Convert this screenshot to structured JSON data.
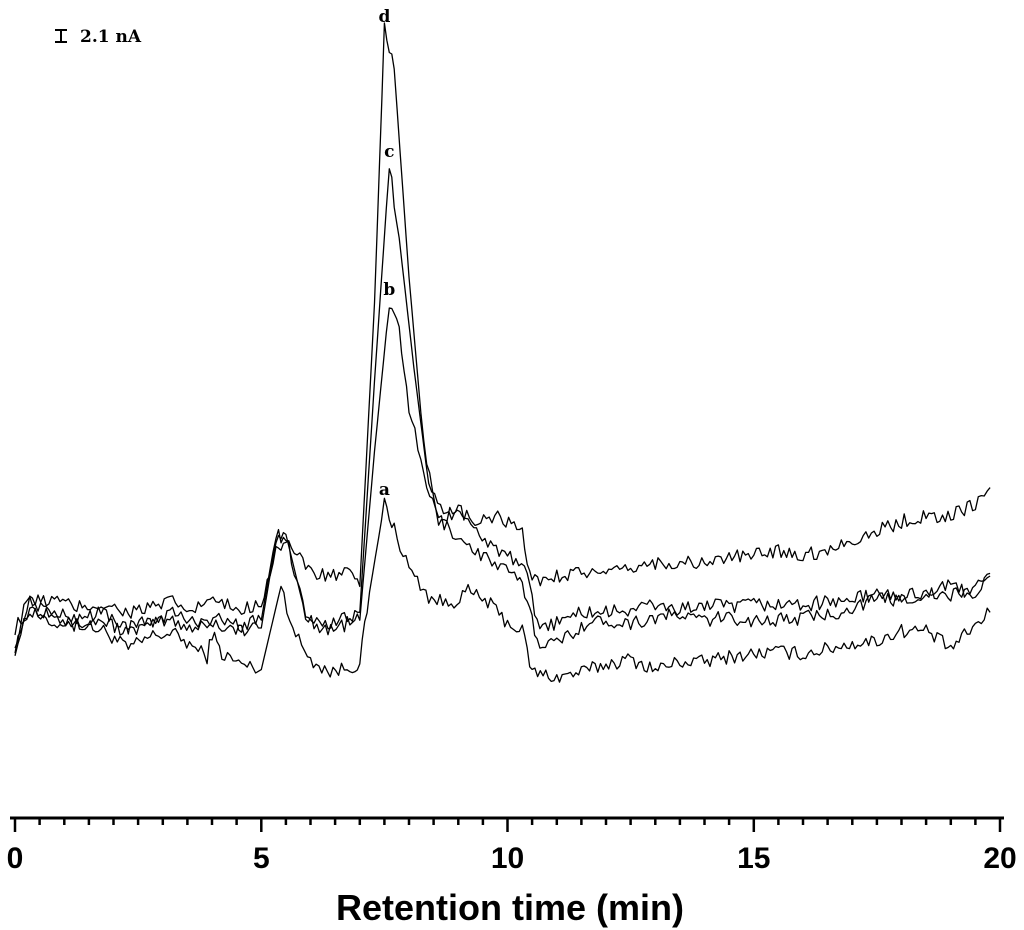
{
  "chart_data": {
    "type": "line",
    "title": "",
    "xlabel": "Retention time (min)",
    "ylabel": "",
    "xlim": [
      0,
      20
    ],
    "x_ticks": [
      0,
      5,
      10,
      15,
      20
    ],
    "x_minor_step": 0.5,
    "grid": false,
    "y_axis_shown": false,
    "scale_bar": {
      "label": "2.1 nA",
      "value_nA": 2.1
    },
    "series": [
      {
        "name": "a",
        "points": [
          [
            0,
            1.2
          ],
          [
            0.3,
            2.7
          ],
          [
            0.8,
            2.4
          ],
          [
            1.2,
            2.2
          ],
          [
            1.8,
            1.9
          ],
          [
            2.3,
            1.2
          ],
          [
            2.8,
            1.7
          ],
          [
            3.2,
            1.8
          ],
          [
            3.6,
            1.3
          ],
          [
            3.9,
            0.9
          ],
          [
            4.0,
            1.8
          ],
          [
            4.2,
            1.0
          ],
          [
            4.6,
            0.6
          ],
          [
            5.0,
            0.4
          ],
          [
            5.4,
            3.6
          ],
          [
            5.7,
            1.7
          ],
          [
            6.0,
            0.8
          ],
          [
            6.4,
            0.3
          ],
          [
            6.8,
            0.5
          ],
          [
            7.0,
            0.6
          ],
          [
            7.2,
            3.4
          ],
          [
            7.5,
            6.8
          ],
          [
            7.7,
            5.8
          ],
          [
            8.0,
            4.3
          ],
          [
            8.4,
            3.2
          ],
          [
            8.8,
            2.9
          ],
          [
            9.2,
            3.4
          ],
          [
            9.6,
            3.0
          ],
          [
            10.0,
            2.2
          ],
          [
            10.3,
            1.9
          ],
          [
            10.5,
            0.3
          ],
          [
            11.0,
            0.1
          ],
          [
            11.5,
            0.3
          ],
          [
            12.0,
            0.6
          ],
          [
            12.5,
            0.8
          ],
          [
            13.0,
            0.4
          ],
          [
            13.5,
            0.7
          ],
          [
            14.0,
            0.7
          ],
          [
            14.5,
            0.9
          ],
          [
            15.0,
            1.0
          ],
          [
            15.5,
            1.1
          ],
          [
            16.0,
            1.0
          ],
          [
            16.5,
            1.2
          ],
          [
            17.0,
            1.4
          ],
          [
            17.5,
            1.5
          ],
          [
            18.0,
            1.9
          ],
          [
            18.5,
            1.9
          ],
          [
            19.0,
            1.2
          ],
          [
            19.5,
            2.1
          ],
          [
            19.8,
            2.6
          ]
        ]
      },
      {
        "name": "b",
        "points": [
          [
            0,
            1.5
          ],
          [
            0.3,
            2.8
          ],
          [
            0.8,
            2.3
          ],
          [
            1.2,
            2.1
          ],
          [
            1.8,
            2.3
          ],
          [
            2.3,
            1.8
          ],
          [
            2.8,
            2.2
          ],
          [
            3.2,
            2.3
          ],
          [
            3.6,
            2.0
          ],
          [
            3.9,
            2.2
          ],
          [
            4.2,
            2.1
          ],
          [
            4.6,
            1.9
          ],
          [
            5.0,
            2.0
          ],
          [
            5.3,
            5.4
          ],
          [
            5.5,
            5.6
          ],
          [
            5.9,
            2.5
          ],
          [
            6.3,
            1.9
          ],
          [
            6.8,
            2.2
          ],
          [
            7.0,
            2.3
          ],
          [
            7.3,
            8.8
          ],
          [
            7.6,
            14.5
          ],
          [
            7.8,
            13.5
          ],
          [
            8.0,
            10.5
          ],
          [
            8.3,
            7.8
          ],
          [
            8.6,
            6.2
          ],
          [
            9.0,
            5.5
          ],
          [
            9.4,
            4.9
          ],
          [
            9.8,
            4.4
          ],
          [
            10.2,
            3.9
          ],
          [
            10.4,
            3.2
          ],
          [
            10.6,
            1.5
          ],
          [
            11.0,
            1.4
          ],
          [
            11.5,
            2.1
          ],
          [
            12.0,
            2.3
          ],
          [
            12.5,
            2.2
          ],
          [
            13.0,
            2.4
          ],
          [
            13.5,
            2.5
          ],
          [
            14.0,
            2.3
          ],
          [
            14.5,
            2.4
          ],
          [
            15.0,
            2.3
          ],
          [
            15.5,
            2.3
          ],
          [
            16.0,
            2.4
          ],
          [
            16.5,
            2.5
          ],
          [
            17.0,
            2.8
          ],
          [
            17.5,
            3.1
          ],
          [
            18.0,
            3.1
          ],
          [
            18.5,
            3.3
          ],
          [
            19.0,
            3.2
          ],
          [
            19.5,
            3.6
          ],
          [
            19.8,
            4.0
          ]
        ]
      },
      {
        "name": "c",
        "points": [
          [
            0,
            2.0
          ],
          [
            0.3,
            3.1
          ],
          [
            0.8,
            2.5
          ],
          [
            1.2,
            2.4
          ],
          [
            1.8,
            2.6
          ],
          [
            2.3,
            2.0
          ],
          [
            2.8,
            2.3
          ],
          [
            3.2,
            2.6
          ],
          [
            3.6,
            2.2
          ],
          [
            3.9,
            2.4
          ],
          [
            4.2,
            2.3
          ],
          [
            4.6,
            2.1
          ],
          [
            5.0,
            2.3
          ],
          [
            5.3,
            5.6
          ],
          [
            5.5,
            5.5
          ],
          [
            5.9,
            2.6
          ],
          [
            6.3,
            2.1
          ],
          [
            6.8,
            2.4
          ],
          [
            7.0,
            2.6
          ],
          [
            7.3,
            11.5
          ],
          [
            7.6,
            19.8
          ],
          [
            7.8,
            17.0
          ],
          [
            8.1,
            12.0
          ],
          [
            8.4,
            7.5
          ],
          [
            8.7,
            6.5
          ],
          [
            9.2,
            6.1
          ],
          [
            9.6,
            5.3
          ],
          [
            10.0,
            4.8
          ],
          [
            10.4,
            4.0
          ],
          [
            10.6,
            2.1
          ],
          [
            11.0,
            2.2
          ],
          [
            11.5,
            2.6
          ],
          [
            12.0,
            2.6
          ],
          [
            12.5,
            2.7
          ],
          [
            13.0,
            2.9
          ],
          [
            13.5,
            2.7
          ],
          [
            14.0,
            2.9
          ],
          [
            14.5,
            2.8
          ],
          [
            15.0,
            2.9
          ],
          [
            15.5,
            2.9
          ],
          [
            16.0,
            2.9
          ],
          [
            16.5,
            3.0
          ],
          [
            17.0,
            3.1
          ],
          [
            17.5,
            3.3
          ],
          [
            18.0,
            3.2
          ],
          [
            18.5,
            3.4
          ],
          [
            19.0,
            3.6
          ],
          [
            19.5,
            3.3
          ],
          [
            19.8,
            4.1
          ]
        ]
      },
      {
        "name": "d",
        "points": [
          [
            0,
            1.3
          ],
          [
            0.3,
            3.0
          ],
          [
            0.8,
            3.1
          ],
          [
            1.2,
            2.8
          ],
          [
            1.8,
            2.9
          ],
          [
            2.3,
            2.6
          ],
          [
            2.8,
            2.8
          ],
          [
            3.2,
            3.0
          ],
          [
            3.6,
            2.6
          ],
          [
            3.9,
            3.1
          ],
          [
            4.2,
            2.9
          ],
          [
            4.6,
            2.7
          ],
          [
            5.0,
            3.0
          ],
          [
            5.3,
            5.0
          ],
          [
            5.5,
            5.4
          ],
          [
            5.9,
            4.3
          ],
          [
            6.3,
            4.0
          ],
          [
            6.8,
            4.1
          ],
          [
            7.0,
            3.6
          ],
          [
            7.3,
            14.5
          ],
          [
            7.5,
            25.0
          ],
          [
            7.7,
            23.5
          ],
          [
            8.0,
            15.5
          ],
          [
            8.3,
            9.0
          ],
          [
            8.6,
            6.2
          ],
          [
            9.0,
            6.5
          ],
          [
            9.4,
            6.0
          ],
          [
            9.8,
            6.3
          ],
          [
            10.3,
            5.6
          ],
          [
            10.5,
            3.8
          ],
          [
            11.0,
            4.0
          ],
          [
            11.5,
            4.2
          ],
          [
            12.0,
            4.0
          ],
          [
            12.5,
            4.3
          ],
          [
            13.0,
            4.5
          ],
          [
            13.5,
            4.5
          ],
          [
            14.0,
            4.5
          ],
          [
            14.5,
            4.7
          ],
          [
            15.0,
            4.8
          ],
          [
            15.5,
            5.0
          ],
          [
            16.0,
            4.8
          ],
          [
            16.5,
            5.0
          ],
          [
            17.0,
            5.4
          ],
          [
            17.5,
            5.7
          ],
          [
            18.0,
            6.1
          ],
          [
            18.5,
            6.3
          ],
          [
            19.0,
            6.3
          ],
          [
            19.5,
            6.8
          ],
          [
            19.8,
            7.4
          ]
        ]
      }
    ],
    "peak_labels": [
      {
        "text": "a",
        "x": 7.5,
        "y": 6.8
      },
      {
        "text": "b",
        "x": 7.6,
        "y": 14.5
      },
      {
        "text": "c",
        "x": 7.6,
        "y": 19.8
      },
      {
        "text": "d",
        "x": 7.5,
        "y": 25.0
      }
    ]
  }
}
